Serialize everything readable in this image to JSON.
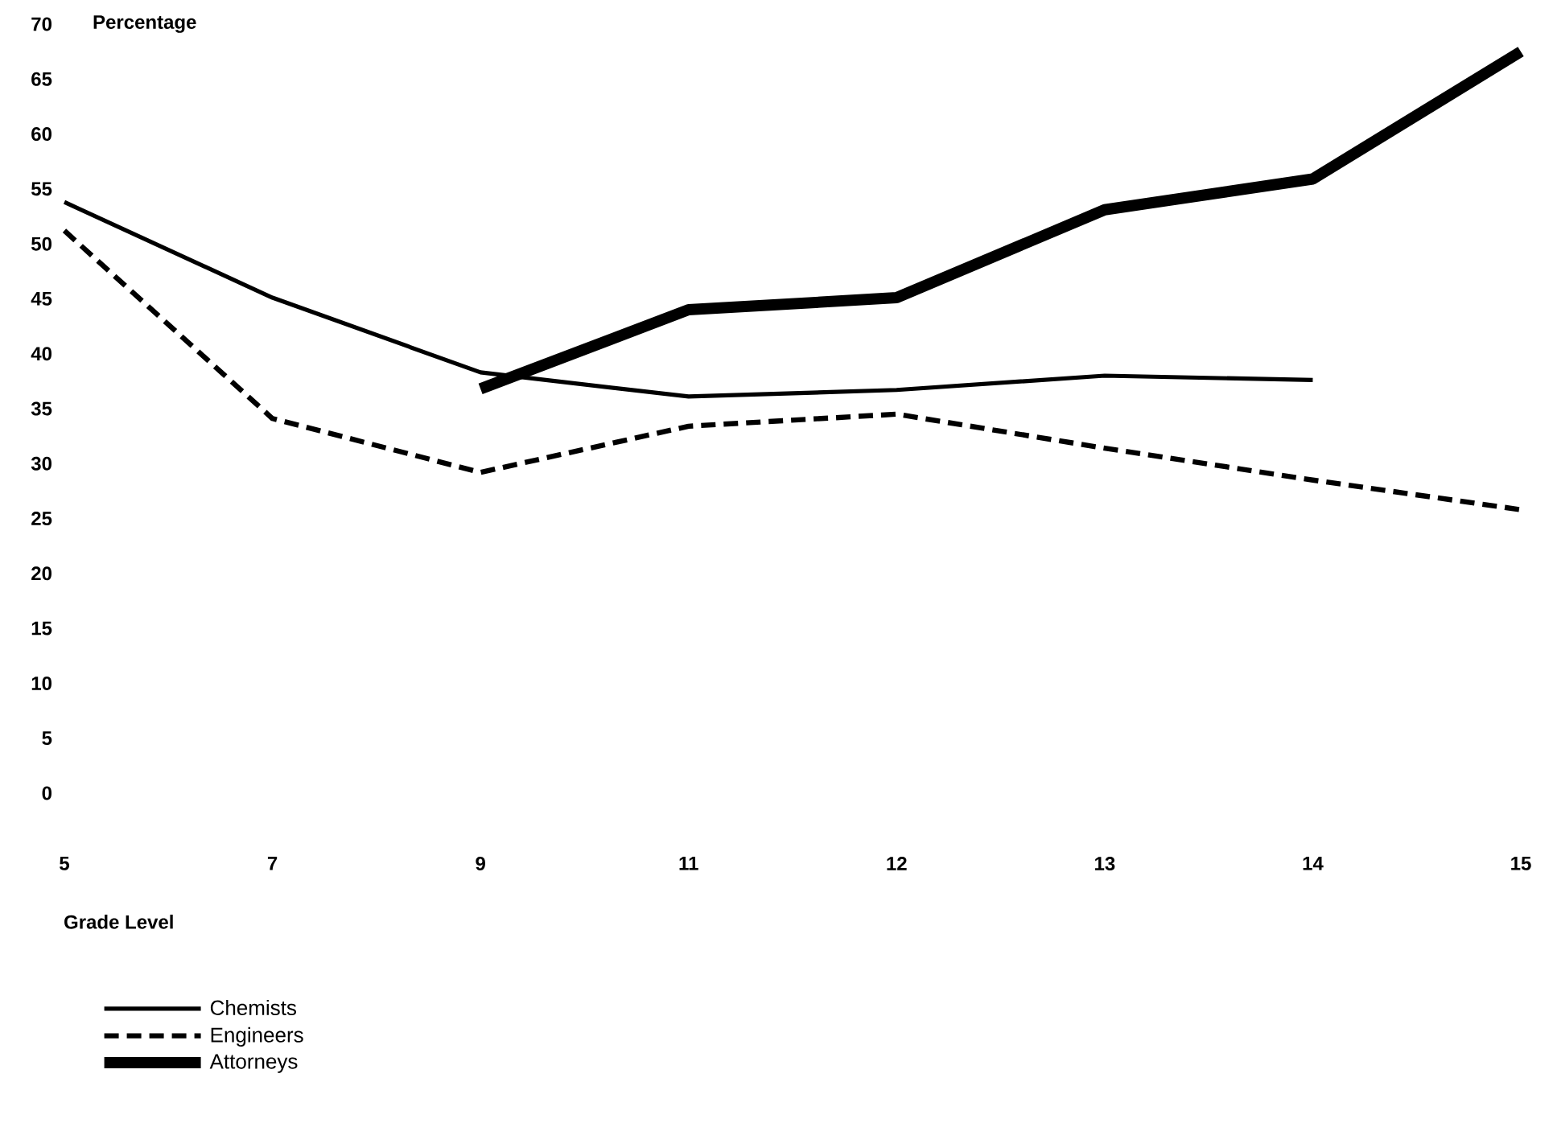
{
  "chart_data": {
    "type": "line",
    "xlabel": "Grade Level",
    "ylabel": "Percentage",
    "categories": [
      "5",
      "7",
      "9",
      "11",
      "12",
      "13",
      "14",
      "15"
    ],
    "series": [
      {
        "name": "Chemists",
        "color": "#000000",
        "line_style": "solid",
        "values": [
          53.8,
          45.1,
          38.3,
          36.1,
          36.7,
          38.0,
          37.6,
          null
        ]
      },
      {
        "name": "Engineers",
        "color": "#000000",
        "line_style": "dashed",
        "values": [
          51.2,
          34.1,
          29.2,
          33.4,
          34.5,
          31.4,
          28.5,
          25.8
        ]
      },
      {
        "name": "Attorneys",
        "color": "#000000",
        "line_style": "solid",
        "values": [
          null,
          null,
          36.8,
          44.0,
          45.1,
          53.1,
          55.9,
          67.5
        ]
      }
    ],
    "ylim": [
      0,
      70
    ],
    "yticks": [
      0,
      5,
      10,
      15,
      20,
      25,
      30,
      35,
      40,
      45,
      50,
      55,
      60,
      65,
      70
    ],
    "legend": "bottom left",
    "marker": "none"
  }
}
